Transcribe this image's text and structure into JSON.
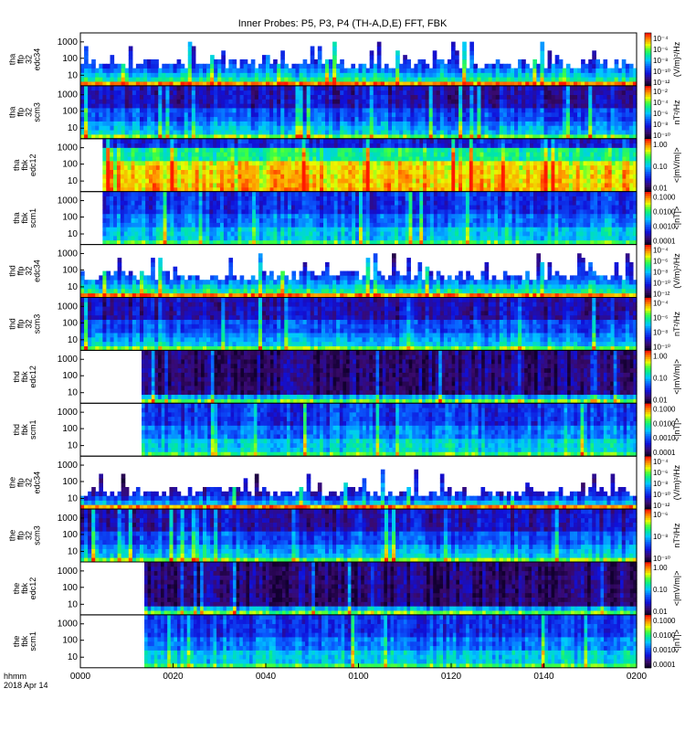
{
  "title": "Inner Probes: P5, P3, P4 (TH-A,D,E) FFT, FBK",
  "time_axis": {
    "ticks": [
      "0000",
      "0020",
      "0040",
      "0100",
      "0120",
      "0140",
      "0200"
    ],
    "label_line1": "hhmm",
    "label_line2": "2018 Apr 14"
  },
  "chart_data": {
    "type": "heatmap",
    "x_range": [
      "00:00",
      "02:00"
    ],
    "panels": [
      {
        "id": "tha-ffp-edc34",
        "name": [
          "tha",
          "ffp",
          "32",
          "edc34"
        ],
        "yticks": [
          "1000",
          "100",
          "10"
        ],
        "colorbar": {
          "ticks": [
            "10⁻⁴",
            "10⁻⁶",
            "10⁻⁸",
            "10⁻¹⁰",
            "10⁻¹²"
          ],
          "unit": "(V/m)²/Hz"
        },
        "kind": "ffp_e",
        "data_start": 0.0
      },
      {
        "id": "tha-ffp-scm3",
        "name": [
          "tha",
          "ffp",
          "32",
          "scm3"
        ],
        "yticks": [
          "1000",
          "100",
          "10"
        ],
        "colorbar": {
          "ticks": [
            "10⁻²",
            "10⁻⁴",
            "10⁻⁶",
            "10⁻⁸",
            "10⁻¹⁰"
          ],
          "unit": "nT²/Hz"
        },
        "kind": "ffp_b",
        "data_start": 0.0
      },
      {
        "id": "tha-fbk-edc12",
        "name": [
          "tha",
          "fbk",
          "edc12"
        ],
        "yticks": [
          "1000",
          "100",
          "10"
        ],
        "colorbar": {
          "ticks": [
            "1.00",
            "0.10",
            "0.01"
          ],
          "unit": "<|mV/m|>"
        },
        "kind": "fbk_e_hot",
        "data_start": 0.04
      },
      {
        "id": "tha-fbk-scm1",
        "name": [
          "tha",
          "fbk",
          "scm1"
        ],
        "yticks": [
          "1000",
          "100",
          "10"
        ],
        "colorbar": {
          "ticks": [
            "0.1000",
            "0.0100",
            "0.0010",
            "0.0001"
          ],
          "unit": "<|nT|>"
        },
        "kind": "fbk_b",
        "data_start": 0.04
      },
      {
        "id": "thd-ffp-edc34",
        "name": [
          "thd",
          "ffp",
          "32",
          "edc34"
        ],
        "yticks": [
          "1000",
          "100",
          "10"
        ],
        "colorbar": {
          "ticks": [
            "10⁻⁴",
            "10⁻⁶",
            "10⁻⁸",
            "10⁻¹⁰",
            "10⁻¹²"
          ],
          "unit": "(V/m)²/Hz"
        },
        "kind": "ffp_e",
        "data_start": 0.0
      },
      {
        "id": "thd-ffp-scm3",
        "name": [
          "thd",
          "ffp",
          "32",
          "scm3"
        ],
        "yticks": [
          "1000",
          "100",
          "10"
        ],
        "colorbar": {
          "ticks": [
            "10⁻⁴",
            "10⁻⁶",
            "10⁻⁸",
            "10⁻¹⁰"
          ],
          "unit": "nT²/Hz"
        },
        "kind": "ffp_b",
        "data_start": 0.0
      },
      {
        "id": "thd-fbk-edc12",
        "name": [
          "thd",
          "fbk",
          "edc12"
        ],
        "yticks": [
          "1000",
          "100",
          "10"
        ],
        "colorbar": {
          "ticks": [
            "1.00",
            "0.10",
            "0.01"
          ],
          "unit": "<|mV/m|>"
        },
        "kind": "fbk_e_dark",
        "data_start": 0.11
      },
      {
        "id": "thd-fbk-scm1",
        "name": [
          "thd",
          "fbk",
          "scm1"
        ],
        "yticks": [
          "1000",
          "100",
          "10"
        ],
        "colorbar": {
          "ticks": [
            "0.1000",
            "0.0100",
            "0.0010",
            "0.0001"
          ],
          "unit": "<|nT|>"
        },
        "kind": "fbk_b",
        "data_start": 0.11
      },
      {
        "id": "the-ffp-edc34",
        "name": [
          "the",
          "ffp",
          "32",
          "edc34"
        ],
        "yticks": [
          "1000",
          "100",
          "10"
        ],
        "colorbar": {
          "ticks": [
            "10⁻⁴",
            "10⁻⁶",
            "10⁻⁸",
            "10⁻¹⁰",
            "10⁻¹²"
          ],
          "unit": "(V/m)²/Hz"
        },
        "kind": "ffp_e_sparse",
        "data_start": 0.0
      },
      {
        "id": "the-ffp-scm3",
        "name": [
          "the",
          "ffp",
          "32",
          "scm3"
        ],
        "yticks": [
          "1000",
          "100",
          "10"
        ],
        "colorbar": {
          "ticks": [
            "10⁻⁶",
            "10⁻⁸",
            "10⁻¹⁰"
          ],
          "unit": "nT²/Hz"
        },
        "kind": "ffp_b",
        "data_start": 0.0
      },
      {
        "id": "the-fbk-edc12",
        "name": [
          "the",
          "fbk",
          "edc12"
        ],
        "yticks": [
          "1000",
          "100",
          "10"
        ],
        "colorbar": {
          "ticks": [
            "1.00",
            "0.10",
            "0.01"
          ],
          "unit": "<|mV/m|>"
        },
        "kind": "fbk_e_dark",
        "data_start": 0.115
      },
      {
        "id": "the-fbk-scm1",
        "name": [
          "the",
          "fbk",
          "scm1"
        ],
        "yticks": [
          "1000",
          "100",
          "10"
        ],
        "colorbar": {
          "ticks": [
            "0.1000",
            "0.0100",
            "0.0010",
            "0.0001"
          ],
          "unit": "<|nT|>"
        },
        "kind": "fbk_b",
        "data_start": 0.115
      }
    ]
  }
}
